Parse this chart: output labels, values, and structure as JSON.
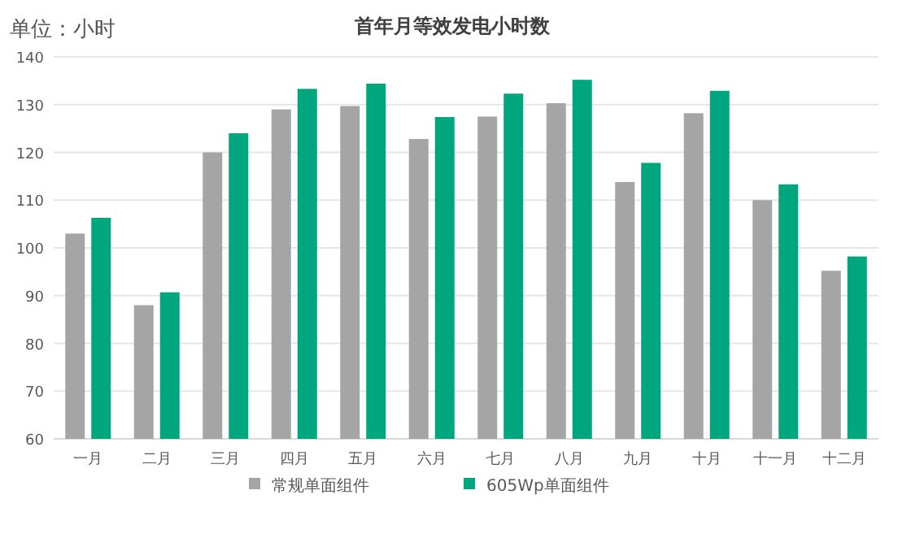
{
  "chart_data": {
    "type": "bar",
    "title": "首年月等效发电小时数",
    "annotations": [
      "单位：小时"
    ],
    "categories": [
      "一月",
      "二月",
      "三月",
      "四月",
      "五月",
      "六月",
      "七月",
      "八月",
      "九月",
      "十月",
      "十一月",
      "十二月"
    ],
    "series": [
      {
        "name": "常规单面组件",
        "color": "#a5a5a5",
        "values": [
          103,
          88,
          120,
          129,
          129.7,
          122.8,
          127.5,
          130.3,
          113.8,
          128.2,
          110,
          95.2
        ]
      },
      {
        "name": "605Wp单面组件",
        "color": "#00a77e",
        "values": [
          106.3,
          90.7,
          124,
          133.3,
          134.4,
          127.4,
          132.3,
          135.2,
          117.8,
          132.9,
          113.3,
          98.2
        ]
      }
    ],
    "ylim": [
      60,
      140
    ],
    "yticks": [
      60,
      70,
      80,
      90,
      100,
      110,
      120,
      130,
      140
    ],
    "grid": "y",
    "legend": "bottom"
  }
}
